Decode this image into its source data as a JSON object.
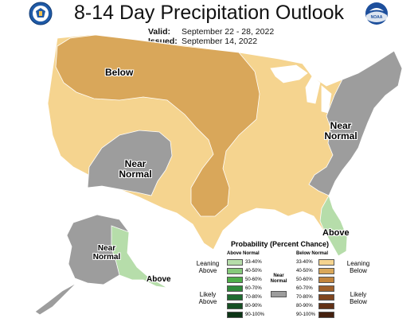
{
  "header": {
    "title": "8-14 Day Precipitation Outlook",
    "valid_label": "Valid:",
    "valid_value": "September 22 - 28, 2022",
    "issued_label": "Issued:",
    "issued_value": "September 14, 2022"
  },
  "logos": {
    "left": {
      "icon": "commerce-seal-icon",
      "color": "#1f5aa6"
    },
    "right": {
      "icon": "noaa-logo-icon",
      "text": "NOAA",
      "color": "#1d4f9c"
    }
  },
  "map_labels": {
    "below": "Below",
    "near_normal_west": "Near Normal",
    "near_normal_east": "Near Normal",
    "above_florida": "Above",
    "near_normal_alaska": "Near Normal",
    "above_alaska": "Above"
  },
  "colors": {
    "below_33_40": "#f5d48f",
    "below_40_50": "#d9a75a",
    "near_normal": "#9d9d9d",
    "above_33_40": "#b6ddaa",
    "background": "#ffffff",
    "lakes": "#ffffff"
  },
  "legend": {
    "title": "Probability (Percent Chance)",
    "above_header": "Above Normal",
    "below_header": "Below Normal",
    "near_normal_label": "Near Normal",
    "leaning_above": "Leaning Above",
    "likely_above": "Likely Above",
    "leaning_below": "Leaning Below",
    "likely_below": "Likely Below",
    "above_bins": [
      {
        "label": "33-40%",
        "color": "#b6ddaa"
      },
      {
        "label": "40-50%",
        "color": "#86c97b"
      },
      {
        "label": "50-60%",
        "color": "#4fae4a"
      },
      {
        "label": "60-70%",
        "color": "#2f8a3a"
      },
      {
        "label": "70-80%",
        "color": "#1f6b30"
      },
      {
        "label": "80-90%",
        "color": "#154f23"
      },
      {
        "label": "90-100%",
        "color": "#0c3516"
      }
    ],
    "below_bins": [
      {
        "label": "33-40%",
        "color": "#f5d48f"
      },
      {
        "label": "40-50%",
        "color": "#d9a75a"
      },
      {
        "label": "50-60%",
        "color": "#c2843c"
      },
      {
        "label": "60-70%",
        "color": "#a0602a"
      },
      {
        "label": "70-80%",
        "color": "#80461f"
      },
      {
        "label": "80-90%",
        "color": "#623116"
      },
      {
        "label": "90-100%",
        "color": "#44200e"
      }
    ]
  }
}
